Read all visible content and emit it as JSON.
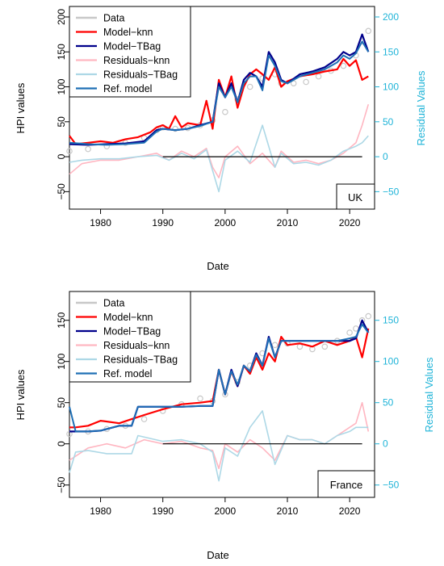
{
  "colors": {
    "data": "#c8c8c8",
    "model_knn": "#ff0000",
    "model_tbag": "#00008b",
    "residuals_knn": "#ffb6c1",
    "residuals_tbag": "#add8e6",
    "ref_model": "#1e6fb5",
    "right_axis": "#1fb4d8",
    "zero_line": "#000000"
  },
  "chart_data": [
    {
      "type": "line",
      "label_box": "UK",
      "xlabel": "Date",
      "ylabel": "HPI values",
      "ylabel_right": "Residual Values",
      "xlim": [
        1975,
        2024
      ],
      "ylim": [
        -75,
        215
      ],
      "x_ticks": [
        1980,
        1990,
        2000,
        2010,
        2020
      ],
      "y_ticks": [
        -50,
        0,
        50,
        100,
        150,
        200
      ],
      "y_ticks_right": [
        -50,
        0,
        50,
        100,
        150,
        200
      ],
      "legend": [
        "Data",
        "Model−knn",
        "Model−TBag",
        "Residuals−knn",
        "Residuals−TBag",
        "Ref. model"
      ],
      "legend_position": "top-left",
      "series": [
        {
          "name": "Data",
          "style": "circles",
          "x": [
            1975,
            1978,
            1981,
            1984,
            1987,
            1989,
            1990,
            1992,
            1994,
            1996,
            1998,
            2000,
            2002,
            2004,
            2006,
            2008,
            2009,
            2011,
            2013,
            2015,
            2017,
            2019,
            2021,
            2022,
            2023
          ],
          "y": [
            8,
            11,
            15,
            20,
            27,
            38,
            42,
            40,
            41,
            45,
            52,
            64,
            82,
            100,
            112,
            118,
            105,
            105,
            107,
            115,
            123,
            130,
            145,
            165,
            180
          ]
        },
        {
          "name": "Model−knn",
          "x": [
            1975,
            1976,
            1978,
            1980,
            1982,
            1984,
            1986,
            1988,
            1989,
            1990,
            1991,
            1992,
            1993,
            1994,
            1996,
            1997,
            1998,
            1999,
            2000,
            2001,
            2002,
            2003,
            2004,
            2005,
            2006,
            2007,
            2008,
            2009,
            2010,
            2012,
            2014,
            2016,
            2018,
            2019,
            2020,
            2021,
            2022,
            2023
          ],
          "y": [
            30,
            18,
            20,
            22,
            20,
            25,
            28,
            35,
            42,
            45,
            40,
            58,
            42,
            48,
            45,
            80,
            40,
            110,
            85,
            115,
            70,
            100,
            118,
            125,
            118,
            110,
            128,
            100,
            108,
            115,
            118,
            122,
            125,
            140,
            130,
            138,
            110,
            115
          ]
        },
        {
          "name": "Model−TBag",
          "x": [
            1975,
            1978,
            1981,
            1984,
            1987,
            1989,
            1990,
            1992,
            1994,
            1996,
            1998,
            1999,
            2000,
            2001,
            2002,
            2003,
            2004,
            2005,
            2006,
            2007,
            2008,
            2009,
            2010,
            2012,
            2014,
            2016,
            2018,
            2019,
            2020,
            2021,
            2022,
            2023
          ],
          "y": [
            18,
            17,
            18,
            19,
            22,
            38,
            40,
            38,
            40,
            45,
            50,
            105,
            85,
            105,
            78,
            110,
            120,
            115,
            100,
            150,
            135,
            110,
            105,
            118,
            122,
            128,
            140,
            150,
            145,
            150,
            175,
            150
          ]
        },
        {
          "name": "Residuals−knn",
          "x": [
            1975,
            1977,
            1980,
            1983,
            1986,
            1989,
            1991,
            1993,
            1995,
            1997,
            1998,
            1999,
            2000,
            2002,
            2004,
            2006,
            2008,
            2009,
            2011,
            2013,
            2015,
            2017,
            2019,
            2021,
            2022,
            2023
          ],
          "y": [
            -25,
            -10,
            -5,
            -5,
            0,
            5,
            -5,
            8,
            0,
            12,
            -15,
            -30,
            0,
            15,
            -10,
            5,
            -15,
            8,
            -8,
            -5,
            -10,
            -5,
            5,
            20,
            45,
            75
          ]
        },
        {
          "name": "Residuals−TBag",
          "x": [
            1975,
            1977,
            1980,
            1983,
            1986,
            1989,
            1991,
            1993,
            1995,
            1997,
            1998,
            1999,
            2000,
            2002,
            2004,
            2006,
            2008,
            2009,
            2011,
            2013,
            2015,
            2017,
            2019,
            2021,
            2022,
            2023
          ],
          "y": [
            -8,
            -5,
            -3,
            -3,
            0,
            2,
            -5,
            5,
            -3,
            10,
            -20,
            -50,
            -5,
            8,
            -8,
            45,
            -15,
            5,
            -10,
            -8,
            -12,
            -5,
            8,
            15,
            20,
            30
          ]
        },
        {
          "name": "Ref. model",
          "x": [
            1975,
            1978,
            1981,
            1984,
            1987,
            1989,
            1990,
            1992,
            1994,
            1996,
            1998,
            1999,
            2000,
            2001,
            2002,
            2003,
            2004,
            2005,
            2006,
            2007,
            2008,
            2009,
            2010,
            2012,
            2014,
            2016,
            2018,
            2019,
            2020,
            2021,
            2022,
            2023
          ],
          "y": [
            20,
            18,
            17,
            18,
            20,
            36,
            40,
            38,
            40,
            44,
            50,
            100,
            85,
            100,
            78,
            105,
            115,
            115,
            95,
            145,
            130,
            108,
            105,
            115,
            120,
            125,
            135,
            145,
            140,
            148,
            165,
            150
          ]
        },
        {
          "name": "zero-line",
          "style": "hline",
          "x": [
            1990,
            2022
          ],
          "y": [
            0,
            0
          ]
        }
      ]
    },
    {
      "type": "line",
      "label_box": "France",
      "xlabel": "Date",
      "ylabel": "HPI values",
      "ylabel_right": "Residual Values",
      "xlim": [
        1975,
        2024
      ],
      "ylim": [
        -65,
        185
      ],
      "x_ticks": [
        1980,
        1990,
        2000,
        2010,
        2020
      ],
      "y_ticks": [
        -50,
        0,
        50,
        100,
        150
      ],
      "y_ticks_right": [
        -50,
        0,
        50,
        100,
        150
      ],
      "legend": [
        "Data",
        "Model−knn",
        "Model−TBag",
        "Residuals−knn",
        "Residuals−TBag",
        "Ref. model"
      ],
      "legend_position": "top-left",
      "series": [
        {
          "name": "Data",
          "style": "circles",
          "x": [
            1975,
            1978,
            1981,
            1984,
            1987,
            1990,
            1993,
            1996,
            1998,
            2000,
            2002,
            2004,
            2006,
            2008,
            2010,
            2012,
            2014,
            2016,
            2018,
            2020,
            2021,
            2022,
            2023
          ],
          "y": [
            12,
            15,
            18,
            22,
            30,
            40,
            48,
            55,
            52,
            60,
            75,
            95,
            110,
            120,
            122,
            118,
            115,
            118,
            125,
            135,
            140,
            150,
            155
          ]
        },
        {
          "name": "Model−knn",
          "x": [
            1975,
            1976,
            1978,
            1980,
            1983,
            1985,
            1987,
            1990,
            1993,
            1996,
            1998,
            1999,
            2000,
            2001,
            2002,
            2003,
            2004,
            2005,
            2006,
            2007,
            2008,
            2009,
            2010,
            2012,
            2014,
            2016,
            2018,
            2020,
            2021,
            2022,
            2023
          ],
          "y": [
            20,
            20,
            22,
            28,
            25,
            30,
            35,
            42,
            48,
            50,
            52,
            90,
            60,
            88,
            70,
            95,
            85,
            105,
            90,
            110,
            100,
            130,
            120,
            122,
            118,
            125,
            120,
            125,
            130,
            105,
            140
          ]
        },
        {
          "name": "Model−TBag",
          "x": [
            1975,
            1976,
            1978,
            1980,
            1983,
            1985,
            1986,
            1990,
            1993,
            1996,
            1998,
            1999,
            2000,
            2001,
            2002,
            2003,
            2004,
            2005,
            2006,
            2007,
            2008,
            2009,
            2010,
            2012,
            2014,
            2016,
            2018,
            2020,
            2021,
            2022,
            2023
          ],
          "y": [
            15,
            15,
            15,
            16,
            22,
            22,
            45,
            45,
            45,
            46,
            46,
            90,
            60,
            90,
            70,
            95,
            88,
            110,
            95,
            130,
            105,
            125,
            125,
            125,
            125,
            125,
            125,
            125,
            128,
            150,
            135
          ]
        },
        {
          "name": "Residuals−knn",
          "x": [
            1975,
            1978,
            1981,
            1984,
            1987,
            1990,
            1993,
            1996,
            1998,
            1999,
            2000,
            2002,
            2004,
            2006,
            2008,
            2010,
            2012,
            2014,
            2016,
            2018,
            2020,
            2021,
            2022,
            2023
          ],
          "y": [
            -20,
            -5,
            0,
            -5,
            5,
            0,
            3,
            -5,
            -8,
            -30,
            0,
            -10,
            5,
            -5,
            -20,
            10,
            5,
            5,
            0,
            10,
            20,
            25,
            50,
            15
          ]
        },
        {
          "name": "Residuals−TBag",
          "x": [
            1975,
            1976,
            1978,
            1981,
            1985,
            1986,
            1990,
            1993,
            1996,
            1998,
            1999,
            2000,
            2002,
            2004,
            2006,
            2008,
            2010,
            2012,
            2014,
            2016,
            2018,
            2020,
            2021,
            2022,
            2023
          ],
          "y": [
            -35,
            -10,
            -8,
            -12,
            -12,
            10,
            3,
            5,
            0,
            -10,
            -45,
            -5,
            -15,
            20,
            40,
            -25,
            10,
            5,
            5,
            0,
            10,
            15,
            20,
            20,
            20
          ]
        },
        {
          "name": "Ref. model",
          "x": [
            1975,
            1976,
            1978,
            1980,
            1983,
            1985,
            1986,
            1990,
            1993,
            1996,
            1998,
            1999,
            2000,
            2001,
            2002,
            2003,
            2004,
            2005,
            2006,
            2007,
            2008,
            2009,
            2010,
            2012,
            2014,
            2016,
            2018,
            2020,
            2021,
            2022,
            2023
          ],
          "y": [
            45,
            15,
            15,
            16,
            22,
            22,
            45,
            45,
            45,
            46,
            46,
            90,
            60,
            88,
            72,
            95,
            88,
            108,
            95,
            128,
            105,
            125,
            125,
            125,
            125,
            125,
            125,
            128,
            130,
            145,
            135
          ]
        },
        {
          "name": "zero-line",
          "style": "hline",
          "x": [
            1990,
            2022
          ],
          "y": [
            0,
            0
          ]
        }
      ]
    }
  ]
}
